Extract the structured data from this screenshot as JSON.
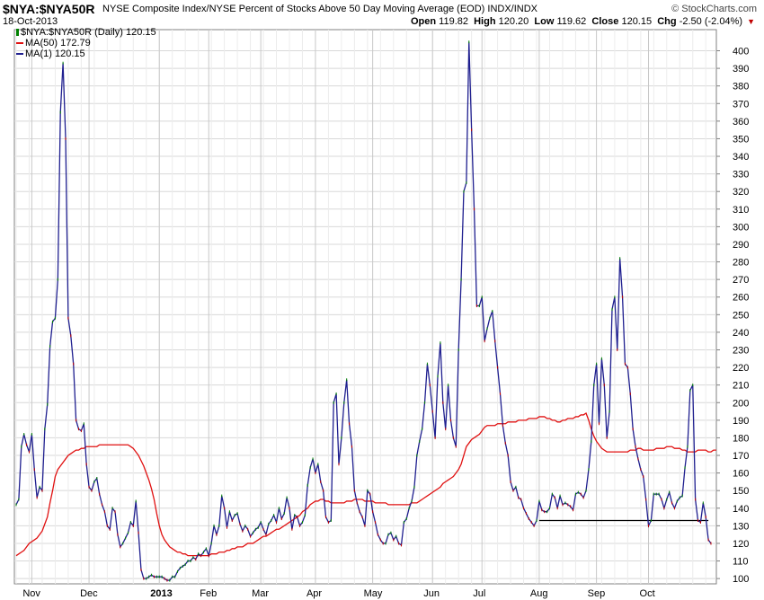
{
  "header": {
    "symbol": "$NYA:$NYA50R",
    "description": "NYSE Composite Index/NYSE Percent of Stocks Above 50 Day Moving Average (EOD)  INDX/INDX",
    "date": "18-Oct-2013",
    "logo": "© StockCharts.com",
    "open_label": "Open",
    "open": "119.82",
    "high_label": "High",
    "high": "120.20",
    "low_label": "Low",
    "low": "119.62",
    "close_label": "Close",
    "close": "120.15",
    "chg_label": "Chg",
    "chg": "-2.50 (-2.04%)"
  },
  "legend": {
    "main": "$NYA:$NYA50R (Daily) 120.15",
    "ma50": "MA(50) 172.79",
    "ma1": "MA(1) 120.15"
  },
  "colors": {
    "price": "#1f1f8f",
    "ma50": "#e01010",
    "support": "#000000",
    "grid": "#d8d8d8",
    "up_tick": "#008000",
    "down_tick": "#c00000"
  },
  "chart_data": {
    "type": "line",
    "ylim": [
      97,
      412
    ],
    "ytick_values": [
      100,
      110,
      120,
      130,
      140,
      150,
      160,
      170,
      180,
      190,
      200,
      210,
      220,
      230,
      240,
      250,
      260,
      270,
      280,
      290,
      300,
      310,
      320,
      330,
      340,
      350,
      360,
      370,
      380,
      390,
      400
    ],
    "ytick_labels": [
      "100",
      "110",
      "120",
      "130",
      "140",
      "150",
      "160",
      "170",
      "180",
      "190",
      "200",
      "210",
      "220",
      "230",
      "240",
      "250",
      "260",
      "270",
      "280",
      "290",
      "300",
      "310",
      "320",
      "330",
      "340",
      "350",
      "360",
      "370",
      "380",
      "390",
      "400"
    ],
    "xtick_labels": [
      "Nov",
      "Dec",
      "2013",
      "Feb",
      "Mar",
      "Apr",
      "May",
      "Jun",
      "Jul",
      "Aug",
      "Sep",
      "Oct"
    ],
    "xtick_index": [
      6,
      28,
      55,
      74,
      94,
      115,
      137,
      160,
      179,
      201,
      223,
      243
    ],
    "grid": true,
    "series": [
      {
        "name": "MA(1)",
        "values": [
          142,
          145,
          175,
          182,
          176,
          172,
          182,
          162,
          146,
          152,
          150,
          185,
          199,
          232,
          246,
          248,
          270,
          365,
          393,
          350,
          248,
          238,
          222,
          190,
          185,
          184,
          188,
          165,
          152,
          150,
          155,
          157,
          148,
          142,
          138,
          130,
          128,
          140,
          138,
          125,
          118,
          120,
          123,
          126,
          132,
          130,
          144,
          126,
          105,
          100,
          100,
          101,
          102,
          101,
          101,
          101,
          101,
          100,
          99,
          99,
          101,
          101,
          104,
          106,
          107,
          108,
          110,
          110,
          112,
          111,
          114,
          113,
          115,
          117,
          113,
          120,
          130,
          125,
          130,
          147,
          140,
          129,
          138,
          133,
          136,
          137,
          131,
          127,
          130,
          128,
          124,
          126,
          128,
          129,
          132,
          128,
          125,
          131,
          133,
          136,
          132,
          140,
          134,
          137,
          146,
          140,
          128,
          136,
          135,
          130,
          132,
          136,
          153,
          163,
          168,
          160,
          165,
          155,
          150,
          135,
          132,
          133,
          200,
          205,
          165,
          180,
          200,
          213,
          188,
          175,
          150,
          143,
          138,
          135,
          130,
          150,
          148,
          138,
          132,
          125,
          122,
          120,
          120,
          125,
          126,
          122,
          124,
          120,
          119,
          132,
          134,
          140,
          144,
          152,
          170,
          178,
          185,
          200,
          222,
          210,
          195,
          180,
          215,
          234,
          200,
          185,
          210,
          190,
          180,
          175,
          230,
          270,
          320,
          325,
          405,
          355,
          310,
          255,
          255,
          260,
          235,
          242,
          248,
          252,
          235,
          220,
          205,
          187,
          177,
          170,
          155,
          150,
          152,
          146,
          145,
          140,
          137,
          134,
          132,
          130,
          133,
          144,
          139,
          138,
          138,
          140,
          148,
          146,
          140,
          147,
          142,
          143,
          142,
          141,
          139,
          148,
          149,
          148,
          146,
          150,
          162,
          178,
          210,
          222,
          188,
          225,
          210,
          180,
          195,
          253,
          260,
          230,
          282,
          260,
          222,
          220,
          205,
          185,
          175,
          168,
          162,
          158,
          145,
          130,
          133,
          148,
          148,
          148,
          145,
          140,
          145,
          149,
          143,
          140,
          144,
          146,
          147,
          163,
          175,
          207,
          210,
          145,
          133,
          132,
          143,
          135,
          122,
          120
        ]
      },
      {
        "name": "MA(50)",
        "values": [
          113,
          114,
          115,
          116,
          118,
          120,
          121,
          122,
          123,
          125,
          127,
          131,
          135,
          143,
          150,
          158,
          162,
          164,
          166,
          168,
          170,
          171,
          172,
          173,
          173,
          174,
          174,
          175,
          175,
          175,
          175,
          175,
          176,
          176,
          176,
          176,
          176,
          176,
          176,
          176,
          176,
          176,
          176,
          176,
          175,
          174,
          172,
          170,
          167,
          164,
          160,
          156,
          151,
          145,
          137,
          130,
          125,
          122,
          120,
          118,
          117,
          116,
          115,
          115,
          114,
          114,
          113,
          113,
          113,
          113,
          113,
          113,
          113,
          113,
          113,
          114,
          114,
          114,
          115,
          115,
          115,
          116,
          116,
          117,
          117,
          118,
          118,
          118,
          119,
          120,
          120,
          120,
          121,
          122,
          123,
          124,
          124,
          125,
          126,
          127,
          128,
          128,
          129,
          130,
          131,
          132,
          133,
          134,
          135,
          136,
          138,
          139,
          140,
          142,
          143,
          144,
          144,
          145,
          145,
          144,
          144,
          143,
          143,
          143,
          143,
          143,
          143,
          144,
          144,
          144,
          145,
          145,
          145,
          145,
          144,
          144,
          144,
          144,
          143,
          143,
          143,
          143,
          143,
          142,
          142,
          142,
          142,
          142,
          142,
          142,
          142,
          142,
          143,
          143,
          143,
          144,
          145,
          146,
          147,
          148,
          149,
          150,
          151,
          152,
          154,
          155,
          156,
          157,
          158,
          160,
          162,
          165,
          170,
          175,
          177,
          179,
          180,
          181,
          182,
          184,
          186,
          187,
          187,
          187,
          187,
          188,
          188,
          188,
          188,
          189,
          189,
          189,
          189,
          190,
          190,
          190,
          190,
          191,
          191,
          191,
          191,
          192,
          192,
          192,
          191,
          191,
          190,
          190,
          189,
          189,
          190,
          190,
          191,
          191,
          191,
          192,
          192,
          193,
          193,
          194,
          190,
          185,
          181,
          178,
          176,
          174,
          173,
          172,
          172,
          172,
          172,
          172,
          172,
          172,
          172,
          172,
          173,
          173,
          173,
          174,
          174,
          173,
          173,
          173,
          173,
          173,
          174,
          174,
          174,
          174,
          175,
          175,
          175,
          174,
          174,
          174,
          173,
          173,
          172,
          172,
          172,
          172,
          173,
          173,
          173,
          173,
          172,
          172,
          173,
          173
        ]
      }
    ],
    "support_line": {
      "start_index": 201,
      "end_index": 266,
      "value": 133
    }
  }
}
